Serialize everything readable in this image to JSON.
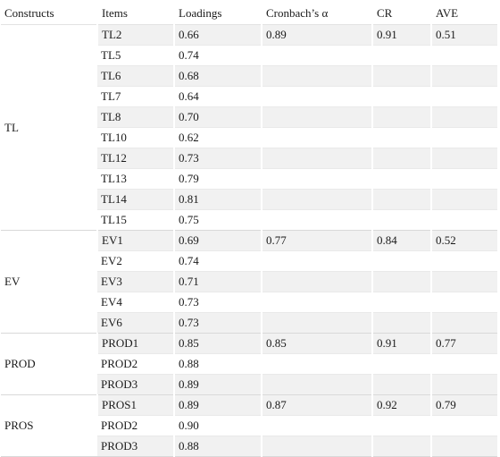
{
  "headers": [
    "Constructs",
    "Items",
    "Loadings",
    "Cronbach’s  α",
    "CR",
    "AVE"
  ],
  "groups": [
    {
      "construct": "TL",
      "cronbach": "0.89",
      "cr": "0.91",
      "ave": "0.51",
      "items": [
        {
          "item": "TL2",
          "loading": "0.66"
        },
        {
          "item": "TL5",
          "loading": "0.74"
        },
        {
          "item": "TL6",
          "loading": "0.68"
        },
        {
          "item": "TL7",
          "loading": "0.64"
        },
        {
          "item": "TL8",
          "loading": "0.70"
        },
        {
          "item": "TL10",
          "loading": "0.62"
        },
        {
          "item": "TL12",
          "loading": "0.73"
        },
        {
          "item": "TL13",
          "loading": "0.79"
        },
        {
          "item": "TL14",
          "loading": "0.81"
        },
        {
          "item": "TL15",
          "loading": "0.75"
        }
      ]
    },
    {
      "construct": "EV",
      "cronbach": "0.77",
      "cr": "0.84",
      "ave": "0.52",
      "items": [
        {
          "item": "EV1",
          "loading": "0.69"
        },
        {
          "item": "EV2",
          "loading": "0.74"
        },
        {
          "item": "EV3",
          "loading": "0.71"
        },
        {
          "item": "EV4",
          "loading": "0.73"
        },
        {
          "item": "EV6",
          "loading": "0.73"
        }
      ]
    },
    {
      "construct": "PROD",
      "cronbach": "0.85",
      "cr": "0.91",
      "ave": "0.77",
      "items": [
        {
          "item": "PROD1",
          "loading": "0.85"
        },
        {
          "item": "PROD2",
          "loading": "0.88"
        },
        {
          "item": "PROD3",
          "loading": "0.89"
        }
      ]
    },
    {
      "construct": "PROS",
      "cronbach": "0.87",
      "cr": "0.92",
      "ave": "0.79",
      "items": [
        {
          "item": "PROS1",
          "loading": "0.89"
        },
        {
          "item": "PROD2",
          "loading": "0.90"
        },
        {
          "item": "PROD3",
          "loading": "0.88"
        }
      ]
    }
  ]
}
